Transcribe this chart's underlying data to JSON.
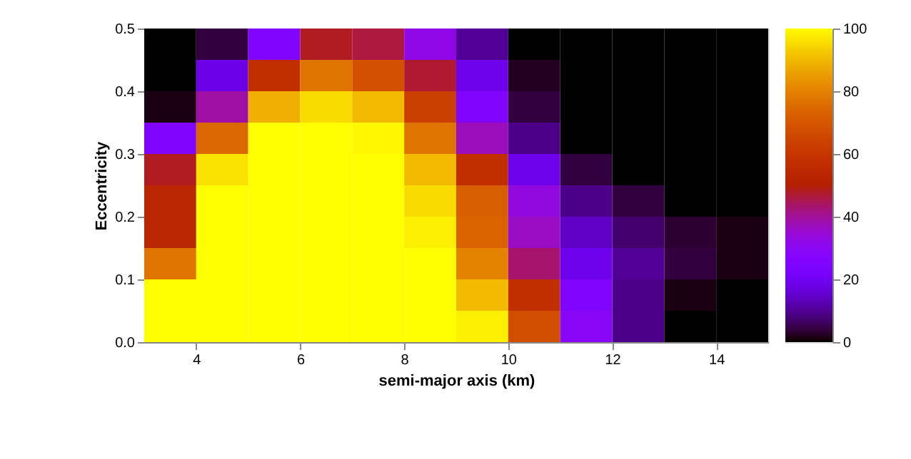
{
  "chart_data": {
    "type": "heatmap",
    "xlabel": "semi-major axis (km)",
    "ylabel": "Eccentricity",
    "x": [
      3.5,
      4.5,
      5.5,
      6.5,
      7.5,
      8.5,
      9.5,
      10.5,
      11.5,
      12.5,
      13.5,
      14.5
    ],
    "y": [
      0.475,
      0.425,
      0.375,
      0.325,
      0.275,
      0.225,
      0.175,
      0.125,
      0.075,
      0.025
    ],
    "xlim": [
      3,
      15
    ],
    "xticks": [
      4,
      6,
      8,
      10,
      12,
      14
    ],
    "ylim": [
      0,
      0.5
    ],
    "yticks": [
      {
        "value": 0,
        "label": "0.0"
      },
      0.1,
      0.2,
      0.3,
      0.4,
      0.5
    ],
    "clim": [
      0,
      100
    ],
    "cticks": [
      0,
      20,
      40,
      60,
      80,
      100
    ],
    "cells": [
      [
        0,
        4,
        25,
        48,
        46,
        32,
        10,
        0,
        0,
        0,
        0,
        0
      ],
      [
        0,
        18,
        57,
        77,
        68,
        47,
        19,
        2,
        0,
        0,
        0,
        0
      ],
      [
        1,
        39,
        88,
        95,
        90,
        63,
        25,
        4,
        0,
        0,
        0,
        0
      ],
      [
        25,
        74,
        100,
        100,
        99,
        77,
        37,
        9,
        0,
        0,
        0,
        0
      ],
      [
        48,
        96,
        100,
        100,
        100,
        90,
        57,
        19,
        4,
        0,
        0,
        0
      ],
      [
        53,
        100,
        100,
        100,
        100,
        95,
        72,
        33,
        9,
        4,
        0,
        0
      ],
      [
        53,
        100,
        100,
        100,
        100,
        98,
        73,
        36,
        14,
        7,
        3,
        1
      ],
      [
        77,
        100,
        100,
        100,
        100,
        100,
        80,
        43,
        19,
        10,
        4,
        1
      ],
      [
        100,
        100,
        100,
        100,
        100,
        100,
        90,
        57,
        25,
        9,
        1,
        0
      ],
      [
        100,
        100,
        100,
        100,
        100,
        100,
        98,
        67,
        29,
        9,
        0,
        0
      ]
    ],
    "grid": false
  }
}
